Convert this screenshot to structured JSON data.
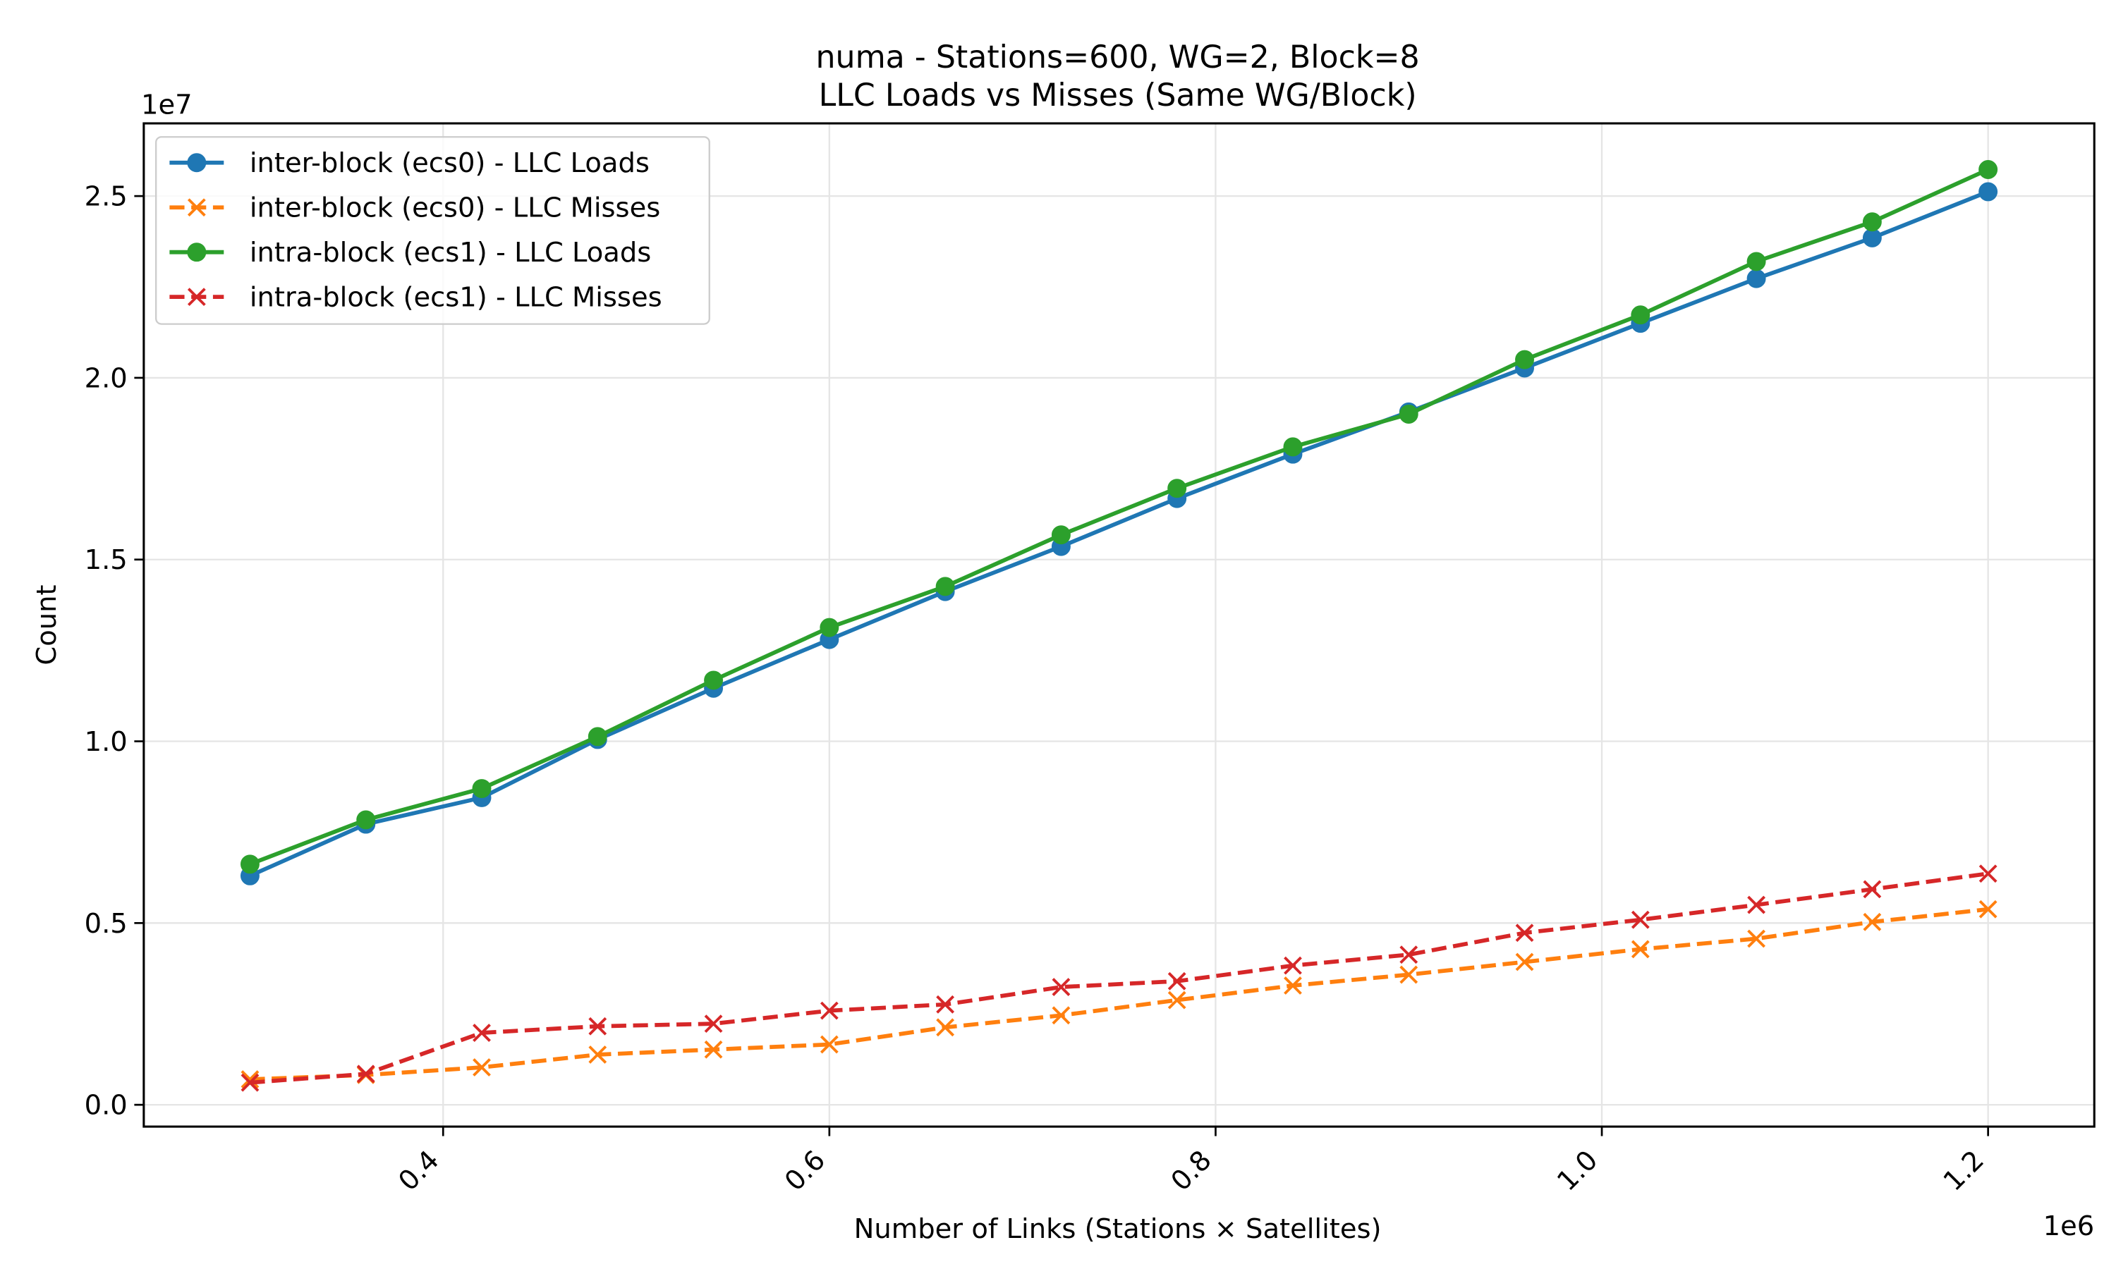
{
  "chart_data": {
    "type": "line",
    "title": "numa - Stations=600, WG=2, Block=8",
    "subtitle": "LLC Loads vs Misses (Same WG/Block)",
    "xlabel": "Number of Links (Stations × Satellites)",
    "ylabel": "Count",
    "x_offset_label": "1e6",
    "y_offset_label": "1e7",
    "x_scale": 1000000,
    "y_scale": 10000000,
    "xlim": [
      245000,
      1255000
    ],
    "ylim": [
      -600000,
      27000000
    ],
    "x_ticks": [
      {
        "value": 400000,
        "label": "0.4"
      },
      {
        "value": 600000,
        "label": "0.6"
      },
      {
        "value": 800000,
        "label": "0.8"
      },
      {
        "value": 1000000,
        "label": "1.0"
      },
      {
        "value": 1200000,
        "label": "1.2"
      }
    ],
    "y_ticks": [
      {
        "value": 0,
        "label": "0.0"
      },
      {
        "value": 5000000,
        "label": "0.5"
      },
      {
        "value": 10000000,
        "label": "1.0"
      },
      {
        "value": 15000000,
        "label": "1.5"
      },
      {
        "value": 20000000,
        "label": "2.0"
      },
      {
        "value": 25000000,
        "label": "2.5"
      }
    ],
    "grid": true,
    "legend_position": "top-left",
    "x": [
      300000,
      360000,
      420000,
      480000,
      540000,
      600000,
      660000,
      720000,
      780000,
      840000,
      900000,
      960000,
      1020000,
      1080000,
      1140000,
      1200000
    ],
    "series": [
      {
        "name": "inter-block (ecs0) - LLC Loads",
        "color": "#1f77b4",
        "line_style": "solid",
        "marker": "circle",
        "values": [
          6300000,
          7720000,
          8450000,
          10050000,
          11460000,
          12800000,
          14120000,
          15360000,
          16680000,
          17900000,
          19060000,
          20270000,
          21500000,
          22730000,
          23850000,
          25120000
        ]
      },
      {
        "name": "inter-block (ecs0) - LLC Misses",
        "color": "#ff7f0e",
        "line_style": "dashed",
        "marker": "x",
        "values": [
          700000,
          820000,
          1030000,
          1380000,
          1520000,
          1660000,
          2130000,
          2460000,
          2880000,
          3280000,
          3580000,
          3930000,
          4280000,
          4570000,
          5030000,
          5380000
        ]
      },
      {
        "name": "intra-block (ecs1) - LLC Loads",
        "color": "#2ca02c",
        "line_style": "solid",
        "marker": "circle",
        "values": [
          6620000,
          7840000,
          8700000,
          10130000,
          11680000,
          13130000,
          14260000,
          15680000,
          16960000,
          18100000,
          19000000,
          20500000,
          21730000,
          23200000,
          24290000,
          25730000
        ]
      },
      {
        "name": "intra-block (ecs1) - LLC Misses",
        "color": "#d62728",
        "line_style": "dashed",
        "marker": "x",
        "values": [
          610000,
          850000,
          1980000,
          2160000,
          2230000,
          2590000,
          2760000,
          3240000,
          3400000,
          3830000,
          4130000,
          4730000,
          5090000,
          5500000,
          5930000,
          6360000
        ]
      }
    ]
  }
}
